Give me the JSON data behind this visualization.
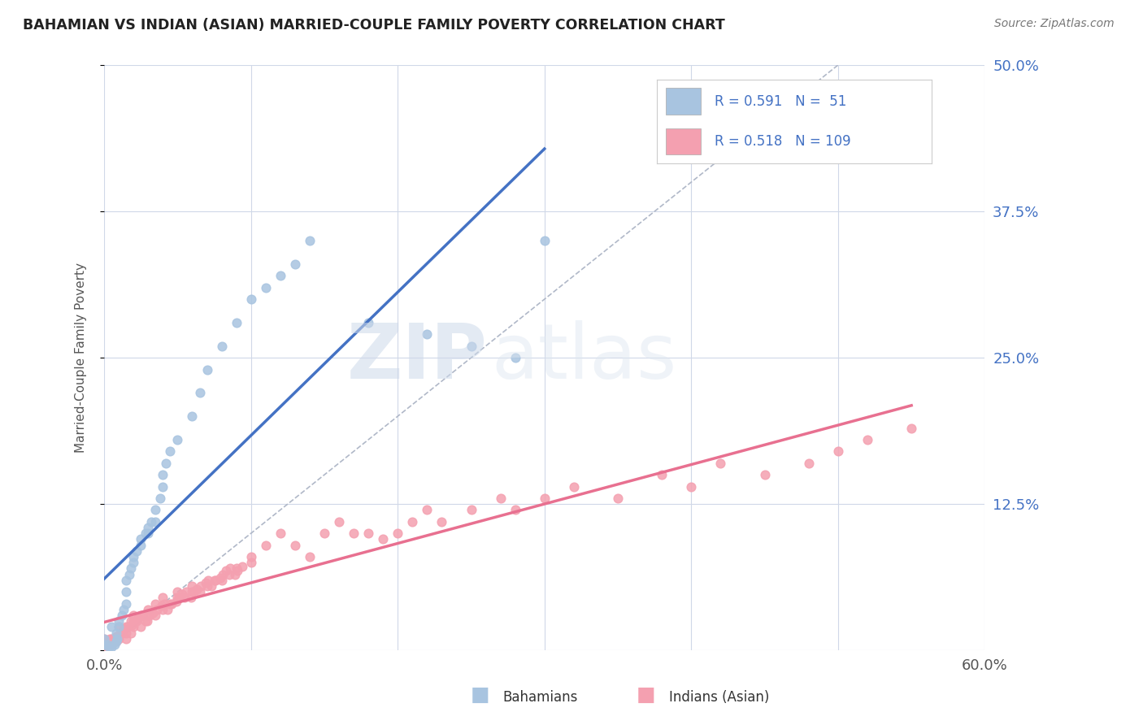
{
  "title": "BAHAMIAN VS INDIAN (ASIAN) MARRIED-COUPLE FAMILY POVERTY CORRELATION CHART",
  "source": "Source: ZipAtlas.com",
  "ylabel": "Married-Couple Family Poverty",
  "xlim": [
    0.0,
    0.6
  ],
  "ylim": [
    0.0,
    0.5
  ],
  "xticks": [
    0.0,
    0.1,
    0.2,
    0.3,
    0.4,
    0.5,
    0.6
  ],
  "xticklabels": [
    "0.0%",
    "",
    "",
    "",
    "",
    "",
    "60.0%"
  ],
  "yticks": [
    0.0,
    0.125,
    0.25,
    0.375,
    0.5
  ],
  "yticklabels": [
    "",
    "12.5%",
    "25.0%",
    "37.5%",
    "50.0%"
  ],
  "bahamian_color": "#a8c4e0",
  "indian_color": "#f4a0b0",
  "bahamian_line_color": "#4472c4",
  "indian_line_color": "#e87090",
  "diagonal_color": "#b0b8c8",
  "R_bahamian": 0.591,
  "N_bahamian": 51,
  "R_indian": 0.518,
  "N_indian": 109,
  "watermark_zip": "ZIP",
  "watermark_atlas": "atlas",
  "background_color": "#ffffff",
  "grid_color": "#d0d8e8",
  "bahamian_scatter_x": [
    0.0,
    0.002,
    0.003,
    0.005,
    0.007,
    0.008,
    0.009,
    0.01,
    0.01,
    0.012,
    0.013,
    0.015,
    0.015,
    0.015,
    0.017,
    0.018,
    0.02,
    0.02,
    0.022,
    0.025,
    0.025,
    0.028,
    0.03,
    0.03,
    0.032,
    0.035,
    0.035,
    0.038,
    0.04,
    0.04,
    0.042,
    0.045,
    0.05,
    0.06,
    0.065,
    0.07,
    0.08,
    0.09,
    0.1,
    0.11,
    0.12,
    0.13,
    0.14,
    0.18,
    0.22,
    0.25,
    0.28,
    0.3,
    0.0,
    0.005,
    0.008
  ],
  "bahamian_scatter_y": [
    0.005,
    0.005,
    0.003,
    0.003,
    0.005,
    0.008,
    0.01,
    0.02,
    0.025,
    0.03,
    0.035,
    0.04,
    0.05,
    0.06,
    0.065,
    0.07,
    0.075,
    0.08,
    0.085,
    0.09,
    0.095,
    0.1,
    0.1,
    0.105,
    0.11,
    0.11,
    0.12,
    0.13,
    0.14,
    0.15,
    0.16,
    0.17,
    0.18,
    0.2,
    0.22,
    0.24,
    0.26,
    0.28,
    0.3,
    0.31,
    0.32,
    0.33,
    0.35,
    0.28,
    0.27,
    0.26,
    0.25,
    0.35,
    0.01,
    0.02,
    0.015
  ],
  "indian_scatter_x": [
    0.0,
    0.0,
    0.005,
    0.005,
    0.008,
    0.008,
    0.01,
    0.01,
    0.012,
    0.015,
    0.015,
    0.015,
    0.018,
    0.018,
    0.02,
    0.02,
    0.02,
    0.022,
    0.025,
    0.025,
    0.028,
    0.03,
    0.03,
    0.035,
    0.035,
    0.04,
    0.04,
    0.045,
    0.05,
    0.05,
    0.055,
    0.06,
    0.06,
    0.065,
    0.07,
    0.075,
    0.08,
    0.085,
    0.09,
    0.1,
    0.1,
    0.11,
    0.12,
    0.13,
    0.14,
    0.15,
    0.16,
    0.17,
    0.18,
    0.19,
    0.2,
    0.21,
    0.22,
    0.23,
    0.25,
    0.27,
    0.28,
    0.3,
    0.32,
    0.35,
    0.38,
    0.4,
    0.42,
    0.45,
    0.48,
    0.5,
    0.52,
    0.55,
    0.0,
    0.002,
    0.003,
    0.004,
    0.006,
    0.007,
    0.009,
    0.011,
    0.013,
    0.016,
    0.019,
    0.021,
    0.023,
    0.026,
    0.029,
    0.031,
    0.033,
    0.036,
    0.039,
    0.041,
    0.043,
    0.046,
    0.049,
    0.051,
    0.053,
    0.056,
    0.059,
    0.061,
    0.063,
    0.066,
    0.069,
    0.071,
    0.073,
    0.076,
    0.079,
    0.081,
    0.083,
    0.086,
    0.089,
    0.091,
    0.094
  ],
  "indian_scatter_y": [
    0.005,
    0.01,
    0.005,
    0.01,
    0.008,
    0.012,
    0.01,
    0.02,
    0.015,
    0.01,
    0.015,
    0.02,
    0.015,
    0.025,
    0.02,
    0.025,
    0.03,
    0.025,
    0.02,
    0.03,
    0.025,
    0.03,
    0.035,
    0.03,
    0.04,
    0.035,
    0.045,
    0.04,
    0.045,
    0.05,
    0.045,
    0.05,
    0.055,
    0.05,
    0.055,
    0.06,
    0.06,
    0.065,
    0.07,
    0.075,
    0.08,
    0.09,
    0.1,
    0.09,
    0.08,
    0.1,
    0.11,
    0.1,
    0.1,
    0.095,
    0.1,
    0.11,
    0.12,
    0.11,
    0.12,
    0.13,
    0.12,
    0.13,
    0.14,
    0.13,
    0.15,
    0.14,
    0.16,
    0.15,
    0.16,
    0.17,
    0.18,
    0.19,
    0.002,
    0.005,
    0.008,
    0.01,
    0.01,
    0.008,
    0.012,
    0.015,
    0.018,
    0.02,
    0.022,
    0.025,
    0.028,
    0.03,
    0.025,
    0.03,
    0.032,
    0.035,
    0.038,
    0.04,
    0.035,
    0.04,
    0.042,
    0.045,
    0.048,
    0.05,
    0.045,
    0.05,
    0.052,
    0.055,
    0.058,
    0.06,
    0.055,
    0.06,
    0.062,
    0.065,
    0.068,
    0.07,
    0.065,
    0.068,
    0.072
  ]
}
